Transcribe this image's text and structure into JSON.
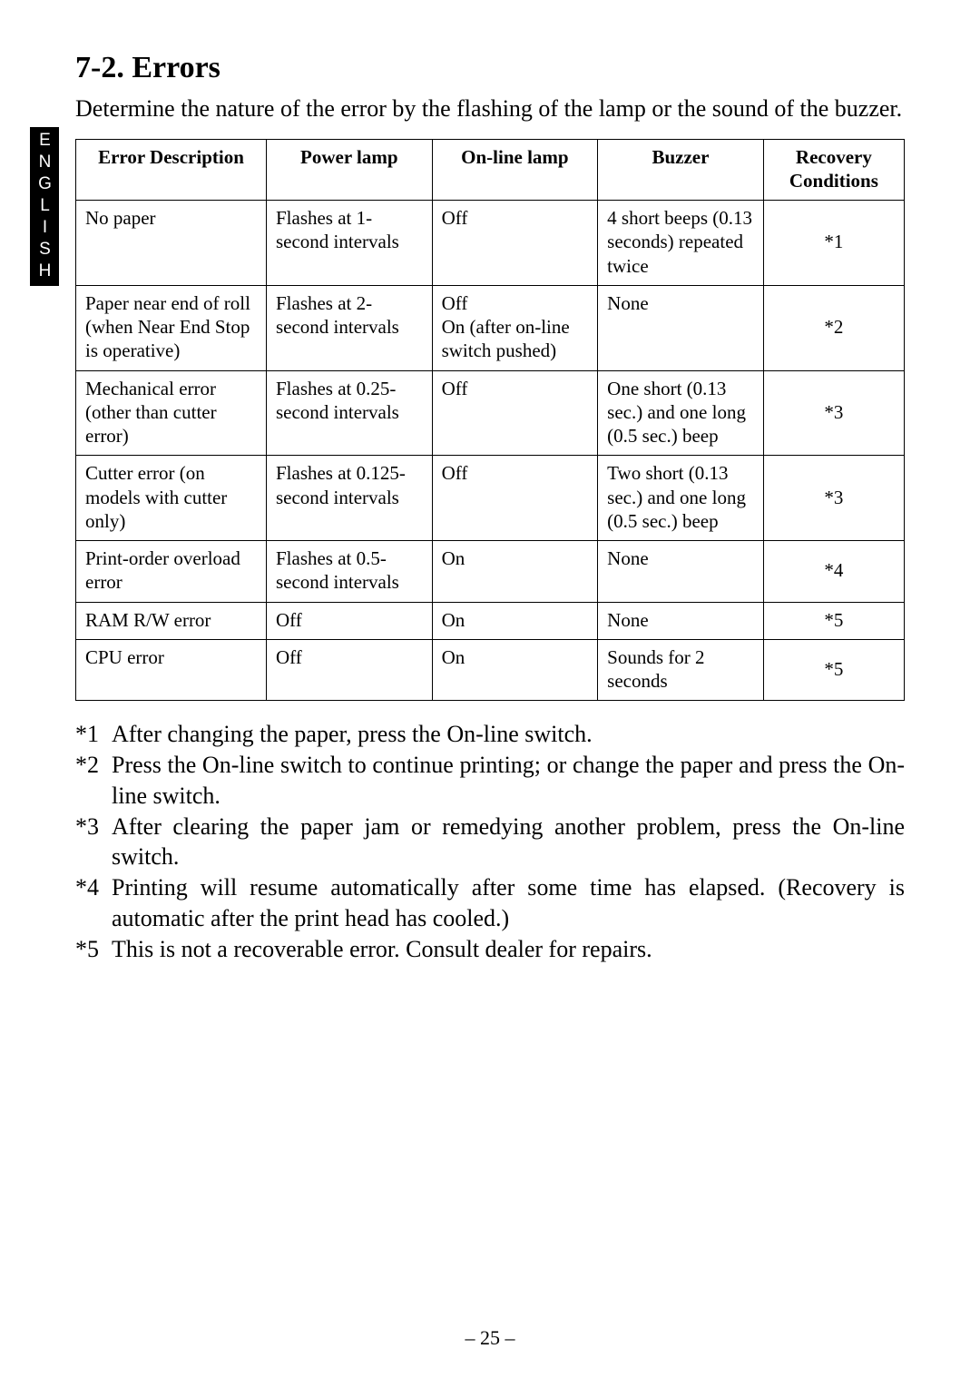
{
  "side_tab": "ENGLISH",
  "section_title": "7-2.  Errors",
  "intro": "Determine the nature of the error by the flashing of the lamp or the sound of the buzzer.",
  "table": {
    "columns": [
      "Error Description",
      "Power lamp",
      "On-line lamp",
      "Buzzer",
      "Recovery Conditions"
    ],
    "rows": [
      [
        "No paper",
        "Flashes at 1-second intervals",
        "Off",
        "4 short beeps (0.13 seconds) repeated twice",
        "*1"
      ],
      [
        "Paper near end of roll (when Near End Stop is operative)",
        "Flashes at 2-second intervals",
        "Off\nOn (after on-line switch pushed)",
        "None",
        "*2"
      ],
      [
        "Mechanical error (other than cutter error)",
        "Flashes at 0.25-second intervals",
        "Off",
        "One short (0.13 sec.) and one long (0.5 sec.) beep",
        "*3"
      ],
      [
        "Cutter error (on models with cutter only)",
        "Flashes at 0.125-second intervals",
        "Off",
        "Two short (0.13 sec.) and one long (0.5 sec.) beep",
        "*3"
      ],
      [
        "Print-order overload error",
        "Flashes at 0.5-second intervals",
        "On",
        "None",
        "*4"
      ],
      [
        "RAM R/W error",
        "Off",
        "On",
        "None",
        "*5"
      ],
      [
        "CPU error",
        "Off",
        "On",
        "Sounds for 2 seconds",
        "*5"
      ]
    ]
  },
  "footnotes": [
    {
      "tag": "*1",
      "text": "After changing the paper, press the On-line switch."
    },
    {
      "tag": "*2",
      "text": "Press the On-line switch to continue printing; or change the paper and press the On-line switch."
    },
    {
      "tag": "*3",
      "text": "After clearing the paper jam or remedying another problem, press the On-line switch."
    },
    {
      "tag": "*4",
      "text": "Printing will resume automatically after some time has elapsed.  (Recovery is automatic after the print head has cooled.)"
    },
    {
      "tag": "*5",
      "text": "This is not a recoverable error.  Consult dealer for repairs."
    }
  ],
  "page_number": "– 25 –"
}
